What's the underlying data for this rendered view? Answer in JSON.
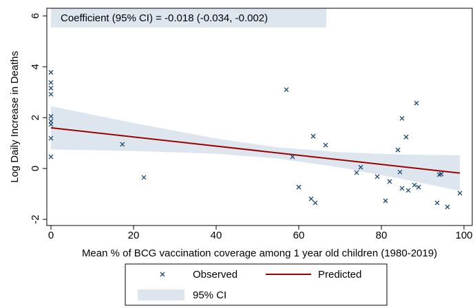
{
  "chart_data": {
    "type": "scatter",
    "annotation": "Coefficient (95% CI) = -0.018 (-0.034, -0.002)",
    "annotation_color": "#dde6ee",
    "x_label": "Mean % of BCG vaccination coverage among 1 year old children (1980-2019)",
    "y_label": "Log Daily Increase in Deaths",
    "xlim": [
      -1,
      102
    ],
    "ylim": [
      -2.24,
      6.3
    ],
    "xticks": [
      0,
      20,
      40,
      60,
      80,
      100
    ],
    "yticks": [
      -2,
      0,
      2,
      4,
      6
    ],
    "grid": false,
    "legend_position": "bottom",
    "series": [
      {
        "name": "Observed",
        "color": "#1a476f",
        "x": [
          0,
          0,
          0,
          0,
          0,
          0,
          0,
          0,
          0,
          17.3,
          22.5,
          57,
          58.5,
          60,
          63,
          63.5,
          64,
          66.5,
          74,
          75,
          79,
          81,
          82,
          84,
          84.5,
          85,
          85,
          86,
          86.5,
          88,
          88.5,
          89,
          93.5,
          94,
          94.5,
          96,
          99
        ],
        "values": [
          3.78,
          3.38,
          3.16,
          2.92,
          2.05,
          1.86,
          1.73,
          1.19,
          0.46,
          0.95,
          -0.35,
          3.1,
          0.46,
          -0.73,
          -1.19,
          1.27,
          -1.35,
          0.92,
          -0.16,
          0.05,
          -0.32,
          -1.27,
          -0.51,
          0.73,
          -0.14,
          1.97,
          -0.78,
          1.24,
          -0.86,
          -0.65,
          2.57,
          -0.73,
          -1.35,
          -0.24,
          -0.22,
          -1.51,
          -0.97
        ]
      },
      {
        "name": "Predicted",
        "color": "#990000",
        "x": [
          0,
          99
        ],
        "values": [
          1.6,
          -0.18
        ]
      },
      {
        "name": "95% CI",
        "color": "#dde6ee",
        "x": [
          0,
          20,
          40,
          55,
          70,
          85,
          99
        ],
        "lower": [
          0.75,
          0.69,
          0.58,
          0.39,
          0.04,
          -0.41,
          -0.88
        ],
        "upper": [
          2.45,
          1.79,
          1.18,
          0.83,
          0.64,
          0.55,
          0.52
        ]
      }
    ]
  }
}
